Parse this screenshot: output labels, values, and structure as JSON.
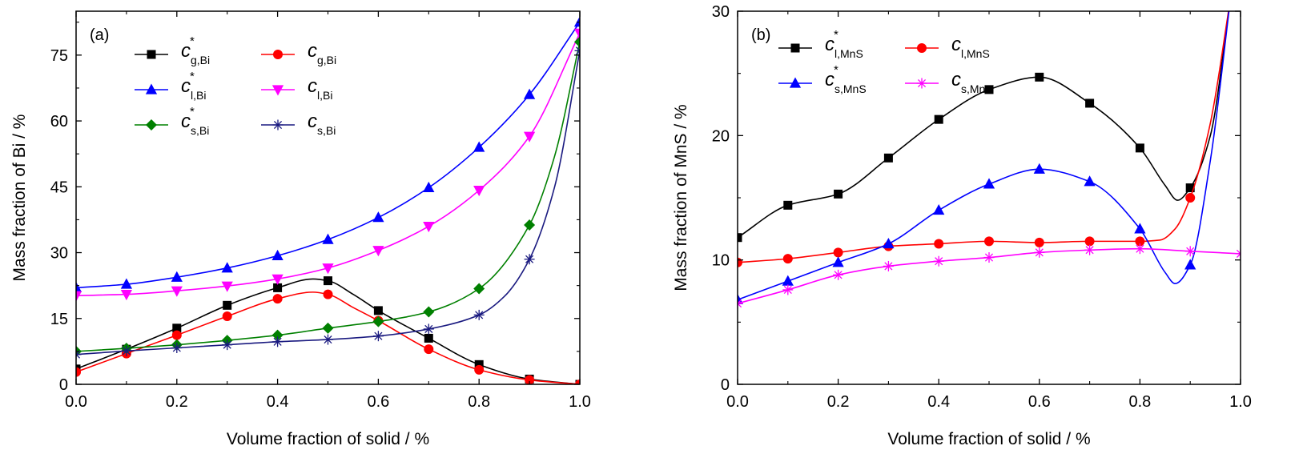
{
  "chart_data": [
    {
      "type": "line",
      "panel_label": "(a)",
      "xlabel": "Volume fraction of solid / %",
      "ylabel": "Mass fraction of Bi / %",
      "xlim": [
        0,
        1
      ],
      "ylim": [
        0,
        85
      ],
      "x_ticks": [
        "0.0",
        "0.2",
        "0.4",
        "0.6",
        "0.8",
        "1.0"
      ],
      "y_ticks": [
        "0",
        "15",
        "30",
        "45",
        "60",
        "75"
      ],
      "legend_placement": "top-left",
      "series": [
        {
          "name_main": "c",
          "name_star": "*",
          "name_sub": "g,Bi",
          "color": "#000000",
          "marker": "square",
          "x": [
            0,
            0.1,
            0.2,
            0.3,
            0.4,
            0.5,
            0.6,
            0.7,
            0.8,
            0.9,
            1.0
          ],
          "y": [
            3.5,
            8,
            12.8,
            18,
            22,
            23.6,
            16.8,
            10.5,
            4.5,
            1.2,
            0
          ],
          "curve_x": [
            0,
            0.1,
            0.2,
            0.3,
            0.4,
            0.47,
            0.5,
            0.55,
            0.6,
            0.7,
            0.8,
            0.9,
            1.0
          ],
          "curve_y": [
            3.5,
            8,
            12.8,
            18,
            22,
            24,
            23.6,
            20.5,
            16.8,
            10.5,
            4.5,
            1.2,
            0
          ]
        },
        {
          "name_main": "c",
          "name_star": "",
          "name_sub": "g,Bi",
          "color": "#ff0000",
          "marker": "circle",
          "x": [
            0,
            0.1,
            0.2,
            0.3,
            0.4,
            0.5,
            0.6,
            0.7,
            0.8,
            0.9,
            1.0
          ],
          "y": [
            2.8,
            7,
            11.2,
            15.5,
            19.5,
            20.5,
            14.5,
            8,
            3.3,
            1,
            0
          ],
          "curve_x": [
            0,
            0.1,
            0.2,
            0.3,
            0.4,
            0.47,
            0.5,
            0.55,
            0.6,
            0.7,
            0.8,
            0.9,
            1.0
          ],
          "curve_y": [
            2.8,
            7,
            11.2,
            15.5,
            19.5,
            21,
            20.5,
            17.5,
            14.5,
            8,
            3.3,
            1,
            0
          ]
        },
        {
          "name_main": "c",
          "name_star": "*",
          "name_sub": "l,Bi",
          "color": "#0000ff",
          "marker": "triangle-up",
          "x": [
            0,
            0.1,
            0.2,
            0.3,
            0.4,
            0.5,
            0.6,
            0.7,
            0.8,
            0.9,
            1.0
          ],
          "y": [
            22,
            22.8,
            24.4,
            26.5,
            29.3,
            33,
            38,
            44.8,
            54,
            66,
            82.5
          ],
          "curve_x": [
            0,
            0.1,
            0.2,
            0.3,
            0.4,
            0.5,
            0.6,
            0.7,
            0.8,
            0.9,
            1.0
          ],
          "curve_y": [
            22,
            22.8,
            24.4,
            26.5,
            29.3,
            33,
            38,
            44.8,
            54,
            66,
            82.5
          ]
        },
        {
          "name_main": "c",
          "name_star": "",
          "name_sub": "l,Bi",
          "color": "#ff00ff",
          "marker": "triangle-down",
          "x": [
            0,
            0.1,
            0.2,
            0.3,
            0.4,
            0.5,
            0.6,
            0.7,
            0.8,
            0.9,
            1.0
          ],
          "y": [
            20.2,
            20.5,
            21.3,
            22.4,
            24,
            26.5,
            30.5,
            36,
            44.2,
            56.5,
            80
          ],
          "curve_x": [
            0,
            0.1,
            0.2,
            0.3,
            0.4,
            0.5,
            0.6,
            0.7,
            0.8,
            0.9,
            1.0
          ],
          "curve_y": [
            20.2,
            20.5,
            21.3,
            22.4,
            24,
            26.5,
            30.5,
            36,
            44.2,
            56.5,
            80
          ]
        },
        {
          "name_main": "c",
          "name_star": "*",
          "name_sub": "s,Bi",
          "color": "#008000",
          "marker": "diamond",
          "x": [
            0,
            0.1,
            0.2,
            0.3,
            0.4,
            0.5,
            0.6,
            0.7,
            0.8,
            0.9,
            1.0
          ],
          "y": [
            7.5,
            8.2,
            9,
            10,
            11.2,
            12.8,
            14.3,
            16.5,
            21.8,
            36.3,
            78
          ],
          "curve_x": [
            0,
            0.1,
            0.2,
            0.3,
            0.4,
            0.5,
            0.6,
            0.7,
            0.8,
            0.9,
            0.95,
            1.0
          ],
          "curve_y": [
            7.5,
            8.2,
            9,
            10,
            11.2,
            12.8,
            14.3,
            16.5,
            21.8,
            36.3,
            52,
            78
          ]
        },
        {
          "name_main": "c",
          "name_star": "",
          "name_sub": "s,Bi",
          "color": "#1a1a80",
          "marker": "asterisk",
          "x": [
            0,
            0.1,
            0.2,
            0.3,
            0.4,
            0.5,
            0.6,
            0.7,
            0.8,
            0.9,
            1.0
          ],
          "y": [
            6.8,
            7.6,
            8.3,
            9,
            9.7,
            10.2,
            11,
            12.6,
            15.8,
            28.5,
            76
          ],
          "curve_x": [
            0,
            0.1,
            0.2,
            0.3,
            0.4,
            0.5,
            0.6,
            0.7,
            0.8,
            0.85,
            0.9,
            0.95,
            1.0
          ],
          "curve_y": [
            6.8,
            7.6,
            8.3,
            9,
            9.7,
            10.2,
            11,
            12.6,
            15.8,
            20,
            28.5,
            45,
            76
          ]
        }
      ]
    },
    {
      "type": "line",
      "panel_label": "(b)",
      "xlabel": "Volume fraction of solid / %",
      "ylabel": "Mass fraction of MnS / %",
      "xlim": [
        0,
        1
      ],
      "ylim": [
        0,
        30
      ],
      "x_ticks": [
        "0.0",
        "0.2",
        "0.4",
        "0.6",
        "0.8",
        "1.0"
      ],
      "y_ticks": [
        "0",
        "10",
        "20",
        "30"
      ],
      "legend_placement": "top-left",
      "series": [
        {
          "name_main": "c",
          "name_star": "*",
          "name_sub": "l,MnS",
          "color": "#000000",
          "marker": "square",
          "x": [
            0,
            0.1,
            0.2,
            0.3,
            0.4,
            0.5,
            0.6,
            0.7,
            0.8,
            0.9
          ],
          "y": [
            11.8,
            14.4,
            15.3,
            18.2,
            21.3,
            23.7,
            24.7,
            22.6,
            19,
            15.8
          ],
          "curve_x": [
            0,
            0.1,
            0.2,
            0.3,
            0.4,
            0.5,
            0.6,
            0.7,
            0.8,
            0.85,
            0.875,
            0.9,
            0.94,
            0.98
          ],
          "curve_y": [
            11.8,
            14.4,
            15.3,
            18.2,
            21.3,
            23.7,
            24.7,
            22.6,
            19,
            16,
            14.8,
            15.8,
            20,
            31
          ]
        },
        {
          "name_main": "c",
          "name_star": "",
          "name_sub": "l,MnS",
          "color": "#ff0000",
          "marker": "circle",
          "x": [
            0,
            0.1,
            0.2,
            0.3,
            0.4,
            0.5,
            0.6,
            0.7,
            0.8,
            0.9
          ],
          "y": [
            9.8,
            10.1,
            10.6,
            11.1,
            11.3,
            11.5,
            11.4,
            11.5,
            11.5,
            15
          ],
          "curve_x": [
            0,
            0.1,
            0.2,
            0.3,
            0.4,
            0.5,
            0.6,
            0.7,
            0.8,
            0.84,
            0.87,
            0.9,
            0.94,
            0.98
          ],
          "curve_y": [
            9.8,
            10.1,
            10.6,
            11.1,
            11.3,
            11.5,
            11.4,
            11.5,
            11.5,
            11.6,
            12.5,
            15,
            21,
            31
          ]
        },
        {
          "name_main": "c",
          "name_star": "*",
          "name_sub": "s,MnS",
          "color": "#0000ff",
          "marker": "triangle-up",
          "x": [
            0,
            0.1,
            0.2,
            0.3,
            0.4,
            0.5,
            0.6,
            0.7,
            0.8,
            0.9
          ],
          "y": [
            6.8,
            8.3,
            9.8,
            11.3,
            14,
            16.1,
            17.3,
            16.3,
            12.5,
            9.6
          ],
          "curve_x": [
            0,
            0.1,
            0.2,
            0.3,
            0.4,
            0.5,
            0.6,
            0.7,
            0.8,
            0.85,
            0.87,
            0.9,
            0.94,
            0.98
          ],
          "curve_y": [
            6.8,
            8.3,
            9.8,
            11.3,
            14,
            16.1,
            17.3,
            16.3,
            12.5,
            9,
            8.1,
            9.6,
            18,
            31
          ]
        },
        {
          "name_main": "c",
          "name_star": "",
          "name_sub": "s,MnS",
          "color": "#ff00ff",
          "marker": "asterisk",
          "x": [
            0,
            0.1,
            0.2,
            0.3,
            0.4,
            0.5,
            0.6,
            0.7,
            0.8,
            0.9,
            1.0
          ],
          "y": [
            6.5,
            7.6,
            8.8,
            9.5,
            9.9,
            10.2,
            10.6,
            10.8,
            10.9,
            10.7,
            10.5
          ],
          "curve_x": [
            0,
            0.1,
            0.2,
            0.3,
            0.4,
            0.5,
            0.6,
            0.7,
            0.8,
            0.9,
            1.0
          ],
          "curve_y": [
            6.5,
            7.6,
            8.8,
            9.5,
            9.9,
            10.2,
            10.6,
            10.8,
            10.9,
            10.7,
            10.5
          ]
        }
      ]
    }
  ]
}
